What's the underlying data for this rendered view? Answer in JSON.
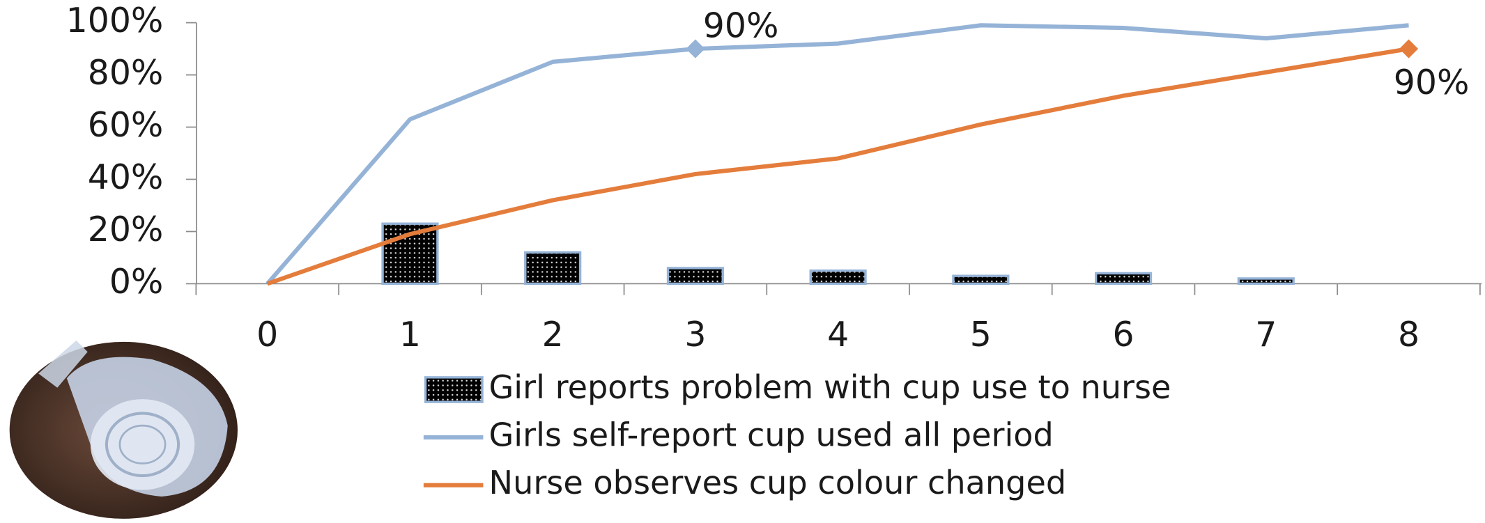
{
  "chart_data": {
    "type": "combo",
    "categories": [
      "0",
      "1",
      "2",
      "3",
      "4",
      "5",
      "6",
      "7",
      "8"
    ],
    "ylim": [
      0,
      100
    ],
    "yticks": [
      {
        "value": 0,
        "label": "0%"
      },
      {
        "value": 20,
        "label": "20%"
      },
      {
        "value": 40,
        "label": "40%"
      },
      {
        "value": 60,
        "label": "60%"
      },
      {
        "value": 80,
        "label": "80%"
      },
      {
        "value": 100,
        "label": "100%"
      }
    ],
    "grid": false,
    "series": [
      {
        "name": "Girl reports problem with cup use to nurse",
        "type": "bar",
        "color": "#000000",
        "values": [
          null,
          23,
          12,
          6,
          5,
          3,
          4,
          2,
          null
        ]
      },
      {
        "name": "Girls self-report cup used all period",
        "type": "line",
        "color": "#95b3d7",
        "values": [
          0,
          63,
          85,
          90,
          92,
          99,
          98,
          94,
          99
        ],
        "value_labels": [
          null,
          null,
          null,
          "90%",
          null,
          null,
          null,
          null,
          null
        ]
      },
      {
        "name": "Nurse observes cup colour changed",
        "type": "line",
        "color": "#e47d3c",
        "values": [
          0,
          19,
          32,
          42,
          48,
          61,
          72,
          81,
          90
        ],
        "value_labels": [
          null,
          null,
          null,
          null,
          null,
          null,
          null,
          null,
          "90%"
        ]
      }
    ]
  }
}
